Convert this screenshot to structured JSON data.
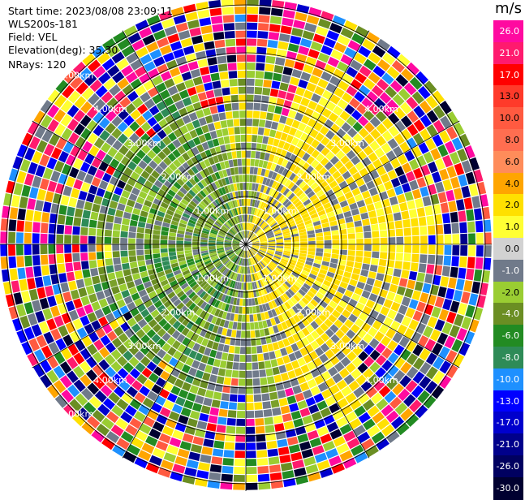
{
  "header": {
    "start_time": "Start time: 2023/08/08 23:09:11",
    "instrument": "WLS200s-181",
    "field": "Field: VEL",
    "elevation": "Elevation(deg): 35.30",
    "nrays": "NRays: 120"
  },
  "colorbar": {
    "unit": "m/s",
    "labels": [
      "26.0",
      "21.0",
      "17.0",
      "13.0",
      "10.0",
      "8.0",
      "6.0",
      "4.0",
      "2.0",
      "1.0",
      "0.0",
      "-1.0",
      "-2.0",
      "-4.0",
      "-6.0",
      "-8.0",
      "-10.0",
      "-13.0",
      "-17.0",
      "-21.0",
      "-26.0",
      "-30.0"
    ],
    "colors": [
      "#ff0aa0",
      "#ff1a6e",
      "#ff0000",
      "#ff3a2a",
      "#ff5a40",
      "#ff6e50",
      "#ff8c5a",
      "#ffa500",
      "#ffe000",
      "#ffff33",
      "#d2d2d2",
      "#707a8a",
      "#9acd32",
      "#6b8e23",
      "#228b22",
      "#2e8b57",
      "#1e90ff",
      "#0000ff",
      "#0000cd",
      "#00008b",
      "#000060",
      "#000030"
    ]
  },
  "chart_data": {
    "type": "heatmap",
    "projection": "polar PPI",
    "field": "VEL",
    "rays": 120,
    "range_rings_km": [
      "1.00km",
      "2.00km",
      "3.00km",
      "4.00km",
      "5.00km"
    ],
    "vmin": -30,
    "vmax": 30
  }
}
